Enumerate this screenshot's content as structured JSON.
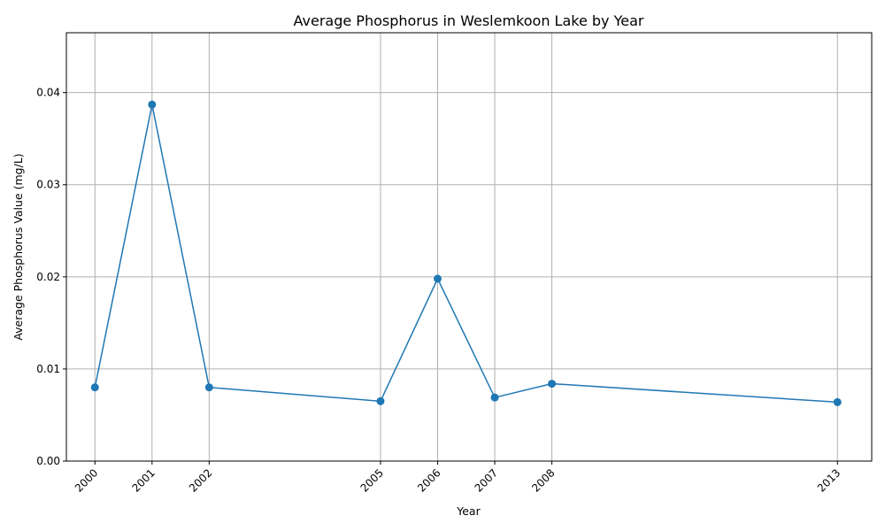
{
  "chart_data": {
    "type": "line",
    "title": "Average Phosphorus in Weslemkoon Lake by Year",
    "xlabel": "Year",
    "ylabel": "Average Phosphorus Value (mg/L)",
    "x": [
      2000,
      2001,
      2002,
      2005,
      2006,
      2007,
      2008,
      2013
    ],
    "x_tick_labels": [
      "2000",
      "2001",
      "2002",
      "2005",
      "2006",
      "2007",
      "2008",
      "2013"
    ],
    "series": [
      {
        "values": [
          0.008,
          0.0387,
          0.008,
          0.0065,
          0.0198,
          0.0069,
          0.0084,
          0.0064
        ],
        "color": "#1f77b4",
        "marker": "circle"
      }
    ],
    "xlim": [
      1999.5,
      2013.6
    ],
    "ylim": [
      0,
      0.0465
    ],
    "y_ticks": [
      0,
      0.01,
      0.02,
      0.03,
      0.04
    ],
    "y_tick_labels": [
      "0.00",
      "0.01",
      "0.02",
      "0.03",
      "0.04"
    ],
    "grid": true
  }
}
